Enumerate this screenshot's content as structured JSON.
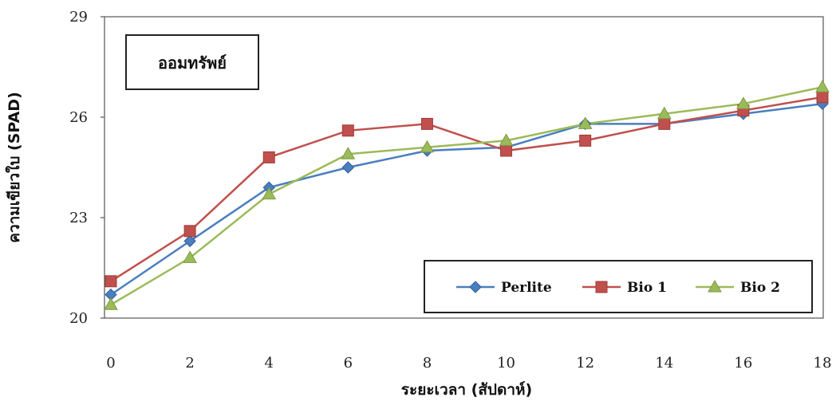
{
  "chart_data": {
    "type": "line",
    "title": "ออมทรัพย์",
    "xlabel": "ระยะเวลา (สัปดาห์)",
    "ylabel": "ความเขียวใบ (SPAD)",
    "x": [
      0,
      2,
      4,
      6,
      8,
      10,
      12,
      14,
      16,
      18
    ],
    "x_ticks": [
      "0",
      "2",
      "4",
      "6",
      "8",
      "10",
      "12",
      "14",
      "16",
      "18"
    ],
    "y_ticks": [
      "20",
      "23",
      "26",
      "29"
    ],
    "xlim": [
      0,
      18
    ],
    "ylim": [
      20,
      29
    ],
    "grid": false,
    "legend_position": "bottom-right",
    "series": [
      {
        "name": "Perlite",
        "color": "#4a7ebf",
        "marker": "diamond",
        "values": [
          20.7,
          22.3,
          23.9,
          24.5,
          25.0,
          25.1,
          25.8,
          25.8,
          26.1,
          26.4
        ]
      },
      {
        "name": "Bio 1",
        "color": "#c0504d",
        "marker": "square",
        "values": [
          21.1,
          22.6,
          24.8,
          25.6,
          25.8,
          25.0,
          25.3,
          25.8,
          26.2,
          26.6
        ]
      },
      {
        "name": "Bio 2",
        "color": "#9bbb59",
        "marker": "triangle",
        "values": [
          20.4,
          21.8,
          23.7,
          24.9,
          25.1,
          25.3,
          25.8,
          26.1,
          26.4,
          26.9
        ]
      }
    ]
  }
}
